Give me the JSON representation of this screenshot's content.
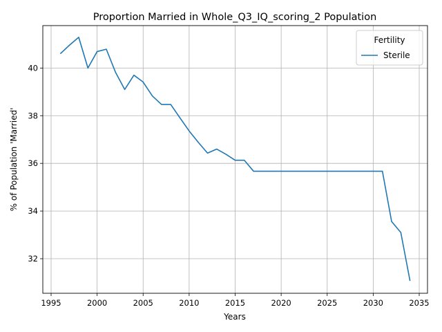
{
  "chart_data": {
    "type": "line",
    "title": "Proportion Married in Whole_Q3_IQ_scoring_2 Population",
    "xlabel": "Years",
    "ylabel": "% of Population 'Married'",
    "xlim": [
      1994.1,
      2035.9
    ],
    "ylim": [
      30.55,
      41.78
    ],
    "xticks": [
      1995,
      2000,
      2005,
      2010,
      2015,
      2020,
      2025,
      2030,
      2035
    ],
    "yticks": [
      32,
      34,
      36,
      38,
      40
    ],
    "grid": true,
    "legend": {
      "title": "Fertility",
      "placement": "top-right"
    },
    "series": [
      {
        "name": "Sterile",
        "color": "#1f77b4",
        "x": [
          1996,
          1997,
          1998,
          1999,
          2000,
          2001,
          2002,
          2003,
          2004,
          2005,
          2006,
          2007,
          2008,
          2009,
          2010,
          2011,
          2012,
          2013,
          2014,
          2015,
          2016,
          2017,
          2018,
          2019,
          2020,
          2021,
          2022,
          2023,
          2024,
          2025,
          2026,
          2027,
          2028,
          2029,
          2030,
          2031,
          2032,
          2033,
          2034
        ],
        "y": [
          40.6,
          40.96,
          41.29,
          40.0,
          40.69,
          40.79,
          39.82,
          39.1,
          39.7,
          39.41,
          38.83,
          38.47,
          38.47,
          37.91,
          37.36,
          36.88,
          36.43,
          36.6,
          36.38,
          36.13,
          36.13,
          35.67,
          35.67,
          35.67,
          35.67,
          35.67,
          35.67,
          35.67,
          35.67,
          35.67,
          35.67,
          35.67,
          35.67,
          35.67,
          35.67,
          35.67,
          33.56,
          33.1,
          31.07
        ]
      }
    ]
  }
}
